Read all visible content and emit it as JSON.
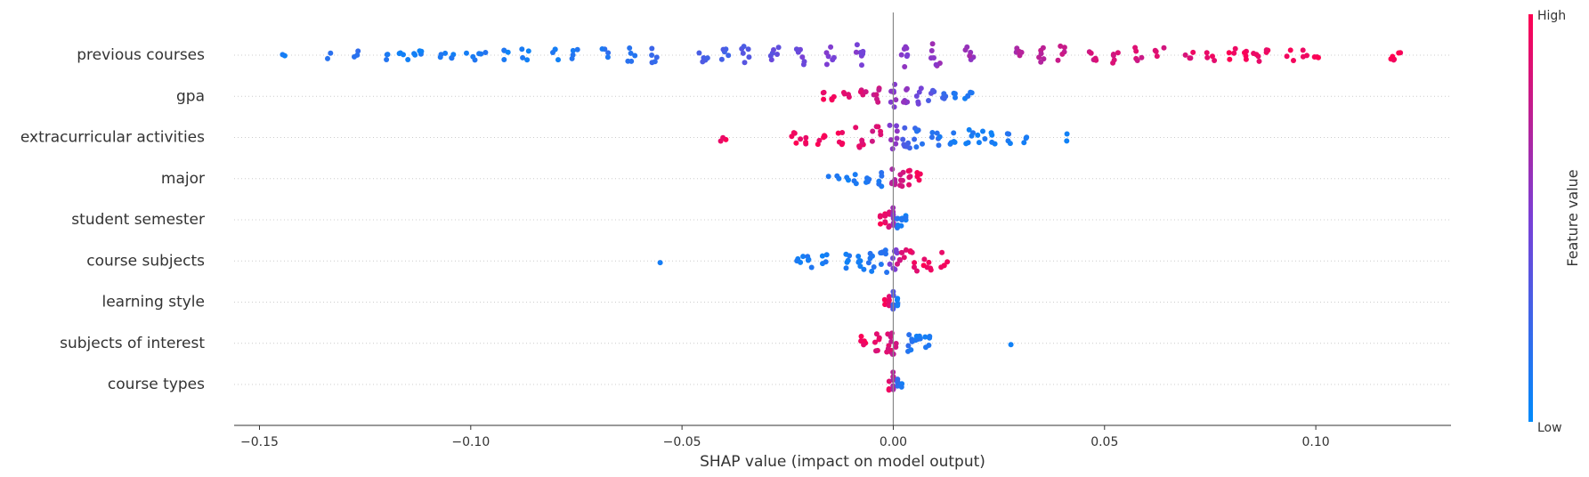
{
  "chart_data": {
    "type": "scatter",
    "subtype": "shap-beeswarm",
    "xlabel": "SHAP value (impact on model output)",
    "xlim": [
      -0.156,
      0.132
    ],
    "xticks": [
      -0.15,
      -0.1,
      -0.05,
      0.0,
      0.05,
      0.1
    ],
    "xtick_labels": [
      "−0.15",
      "−0.10",
      "−0.05",
      "0.00",
      "0.05",
      "0.10"
    ],
    "grid": false,
    "colorbar": {
      "title": "Feature value",
      "high_label": "High",
      "low_label": "Low",
      "low_color": "#008bfb",
      "high_color": "#ff0052"
    },
    "features": [
      {
        "name": "previous courses",
        "min": -0.144,
        "max": 0.119,
        "zero_spread": 0.0,
        "points": [
          [
            -0.144,
            0.1
          ],
          [
            -0.133,
            0.15
          ],
          [
            -0.127,
            0.2
          ],
          [
            -0.119,
            0.1
          ],
          [
            -0.117,
            0.1
          ],
          [
            -0.114,
            0.1
          ],
          [
            -0.112,
            0.1
          ],
          [
            -0.107,
            0.1
          ],
          [
            -0.104,
            0.1
          ],
          [
            -0.1,
            0.1
          ],
          [
            -0.097,
            0.1
          ],
          [
            -0.092,
            0.1
          ],
          [
            -0.087,
            0.1
          ],
          [
            -0.08,
            0.1
          ],
          [
            -0.075,
            0.15
          ],
          [
            -0.068,
            0.15
          ],
          [
            -0.062,
            0.15
          ],
          [
            -0.057,
            0.2
          ],
          [
            -0.045,
            0.3
          ],
          [
            -0.04,
            0.3
          ],
          [
            -0.035,
            0.35
          ],
          [
            -0.028,
            0.4
          ],
          [
            -0.022,
            0.45
          ],
          [
            -0.015,
            0.5
          ],
          [
            -0.008,
            0.5
          ],
          [
            0.003,
            0.55
          ],
          [
            0.01,
            0.6
          ],
          [
            0.018,
            0.62
          ],
          [
            0.03,
            0.7
          ],
          [
            0.035,
            0.75
          ],
          [
            0.04,
            0.8
          ],
          [
            0.047,
            0.82
          ],
          [
            0.053,
            0.85
          ],
          [
            0.058,
            0.85
          ],
          [
            0.063,
            0.88
          ],
          [
            0.07,
            0.9
          ],
          [
            0.075,
            0.92
          ],
          [
            0.08,
            0.95
          ],
          [
            0.083,
            0.95
          ],
          [
            0.086,
            0.95
          ],
          [
            0.089,
            0.95
          ],
          [
            0.094,
            0.97
          ],
          [
            0.097,
            0.97
          ],
          [
            0.1,
            0.97
          ],
          [
            0.118,
            1.0
          ],
          [
            0.119,
            1.0
          ]
        ]
      },
      {
        "name": "gpa",
        "min": -0.017,
        "max": 0.018,
        "zero_spread": 0.0,
        "points": [
          [
            -0.017,
            0.95
          ],
          [
            -0.014,
            0.95
          ],
          [
            -0.011,
            0.9
          ],
          [
            -0.007,
            0.85
          ],
          [
            -0.004,
            0.8
          ],
          [
            0.0,
            0.55
          ],
          [
            0.003,
            0.55
          ],
          [
            0.006,
            0.45
          ],
          [
            0.009,
            0.35
          ],
          [
            0.012,
            0.25
          ],
          [
            0.015,
            0.15
          ],
          [
            0.017,
            0.1
          ],
          [
            0.018,
            0.1
          ]
        ]
      },
      {
        "name": "extracurricular activities",
        "min": -0.04,
        "max": 0.042,
        "zero_spread": 0.0,
        "points": [
          [
            -0.04,
            0.95
          ],
          [
            -0.023,
            0.95
          ],
          [
            -0.021,
            0.95
          ],
          [
            -0.017,
            0.95
          ],
          [
            -0.012,
            0.95
          ],
          [
            -0.008,
            0.9
          ],
          [
            -0.004,
            0.85
          ],
          [
            0.0,
            0.55
          ],
          [
            0.003,
            0.3
          ],
          [
            0.006,
            0.2
          ],
          [
            0.01,
            0.15
          ],
          [
            0.014,
            0.12
          ],
          [
            0.018,
            0.1
          ],
          [
            0.021,
            0.1
          ],
          [
            0.024,
            0.1
          ],
          [
            0.027,
            0.1
          ],
          [
            0.031,
            0.1
          ],
          [
            0.042,
            0.1
          ]
        ]
      },
      {
        "name": "major",
        "min": -0.015,
        "max": 0.006,
        "zero_spread": 0.0,
        "points": [
          [
            -0.015,
            0.1
          ],
          [
            -0.013,
            0.1
          ],
          [
            -0.011,
            0.1
          ],
          [
            -0.009,
            0.1
          ],
          [
            -0.006,
            0.12
          ],
          [
            -0.003,
            0.15
          ],
          [
            0.0,
            0.7
          ],
          [
            0.002,
            0.85
          ],
          [
            0.004,
            0.9
          ],
          [
            0.006,
            0.95
          ]
        ]
      },
      {
        "name": "student semester",
        "min": -0.003,
        "max": 0.003,
        "zero_spread": 0.0,
        "points": [
          [
            -0.003,
            0.95
          ],
          [
            -0.002,
            0.95
          ],
          [
            -0.001,
            0.9
          ],
          [
            0.0,
            0.6
          ],
          [
            0.001,
            0.15
          ],
          [
            0.002,
            0.1
          ],
          [
            0.003,
            0.1
          ]
        ]
      },
      {
        "name": "course subjects",
        "min": -0.055,
        "max": 0.012,
        "zero_spread": 0.0,
        "points": [
          [
            -0.055,
            0.1
          ],
          [
            -0.022,
            0.1
          ],
          [
            -0.02,
            0.1
          ],
          [
            -0.016,
            0.1
          ],
          [
            -0.011,
            0.1
          ],
          [
            -0.008,
            0.1
          ],
          [
            -0.005,
            0.12
          ],
          [
            -0.002,
            0.15
          ],
          [
            0.0,
            0.5
          ],
          [
            0.002,
            0.85
          ],
          [
            0.005,
            0.9
          ],
          [
            0.008,
            0.95
          ],
          [
            0.012,
            0.95
          ]
        ]
      },
      {
        "name": "learning style",
        "min": -0.002,
        "max": 0.001,
        "zero_spread": 0.0,
        "points": [
          [
            -0.002,
            0.95
          ],
          [
            -0.001,
            0.9
          ],
          [
            0.0,
            0.3
          ],
          [
            0.001,
            0.1
          ]
        ]
      },
      {
        "name": "subjects of interest",
        "min": -0.007,
        "max": 0.028,
        "zero_spread": 0.0,
        "points": [
          [
            -0.007,
            0.95
          ],
          [
            -0.004,
            0.9
          ],
          [
            -0.001,
            0.85
          ],
          [
            0.0,
            0.8
          ],
          [
            0.004,
            0.15
          ],
          [
            0.006,
            0.1
          ],
          [
            0.008,
            0.1
          ],
          [
            0.028,
            0.1
          ]
        ]
      },
      {
        "name": "course types",
        "min": -0.001,
        "max": 0.002,
        "zero_spread": 0.0,
        "points": [
          [
            -0.001,
            0.9
          ],
          [
            0.0,
            0.7
          ],
          [
            0.001,
            0.2
          ],
          [
            0.002,
            0.1
          ]
        ]
      }
    ]
  }
}
